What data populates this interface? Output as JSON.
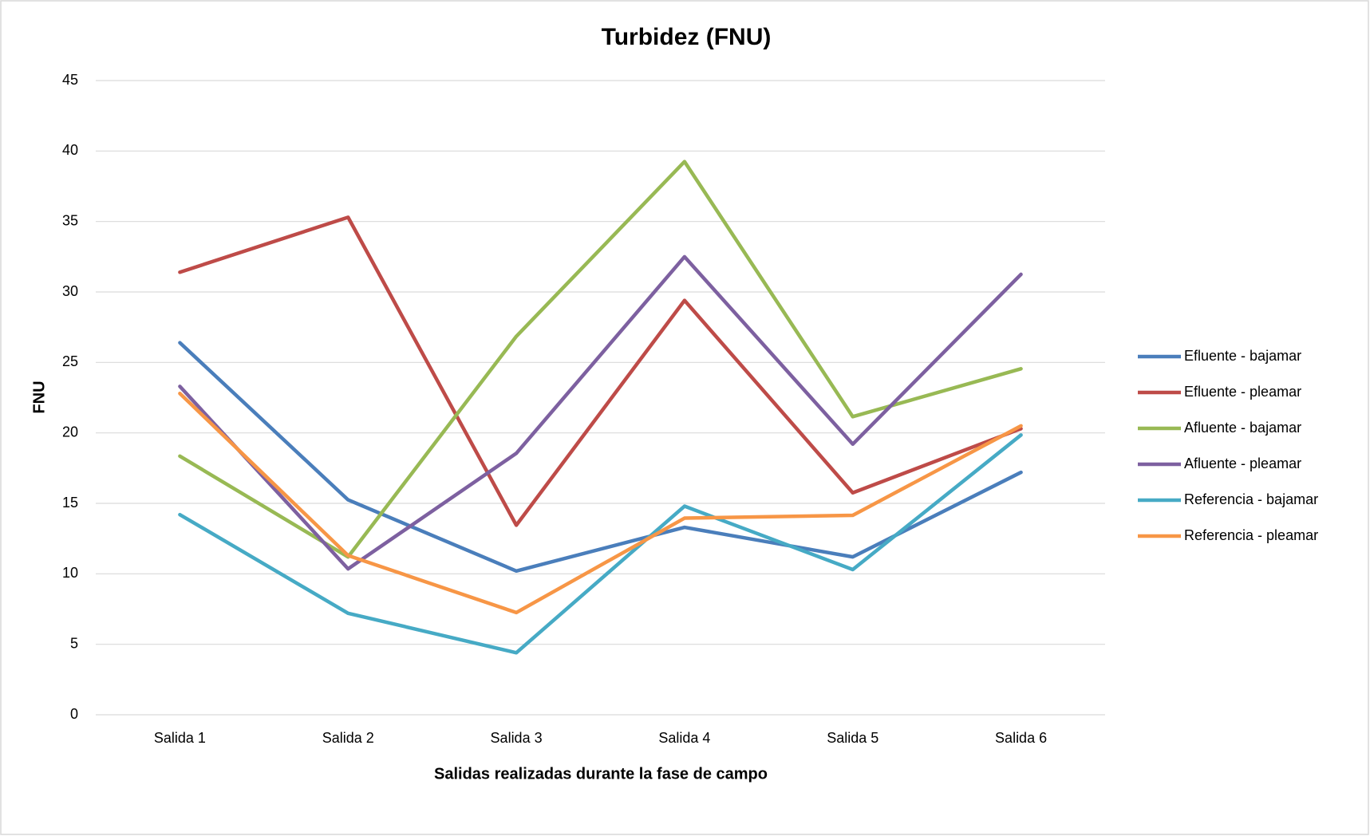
{
  "chart_data": {
    "type": "line",
    "title": "Turbidez (FNU)",
    "x_label": "Salidas realizadas durante la fase de campo",
    "y_label": "FNU",
    "categories": [
      "Salida 1",
      "Salida 2",
      "Salida 3",
      "Salida 4",
      "Salida 5",
      "Salida 6"
    ],
    "series": [
      {
        "name": "Efluente - bajamar",
        "color": "#4a7ebb",
        "values": [
          26.4,
          15.25,
          10.2,
          13.3,
          11.2,
          17.2
        ]
      },
      {
        "name": "Efluente - pleamar",
        "color": "#be4b48",
        "values": [
          31.4,
          35.3,
          13.45,
          29.4,
          15.75,
          20.3
        ]
      },
      {
        "name": "Afluente - bajamar",
        "color": "#98b954",
        "values": [
          18.35,
          11.2,
          26.85,
          39.25,
          21.15,
          24.55
        ]
      },
      {
        "name": "Afluente - pleamar",
        "color": "#7d60a0",
        "values": [
          23.3,
          10.35,
          18.55,
          32.5,
          19.2,
          31.25
        ]
      },
      {
        "name": "Referencia - bajamar",
        "color": "#46aac5",
        "values": [
          14.2,
          7.2,
          4.4,
          14.8,
          10.3,
          19.85
        ]
      },
      {
        "name": "Referencia - pleamar",
        "color": "#f79646",
        "values": [
          22.8,
          11.3,
          7.25,
          13.95,
          14.15,
          20.5
        ]
      }
    ],
    "ylim": [
      0,
      45
    ],
    "yticks": [
      0,
      5,
      10,
      15,
      20,
      25,
      30,
      35,
      40,
      45
    ],
    "grid": true,
    "legend": "right"
  }
}
